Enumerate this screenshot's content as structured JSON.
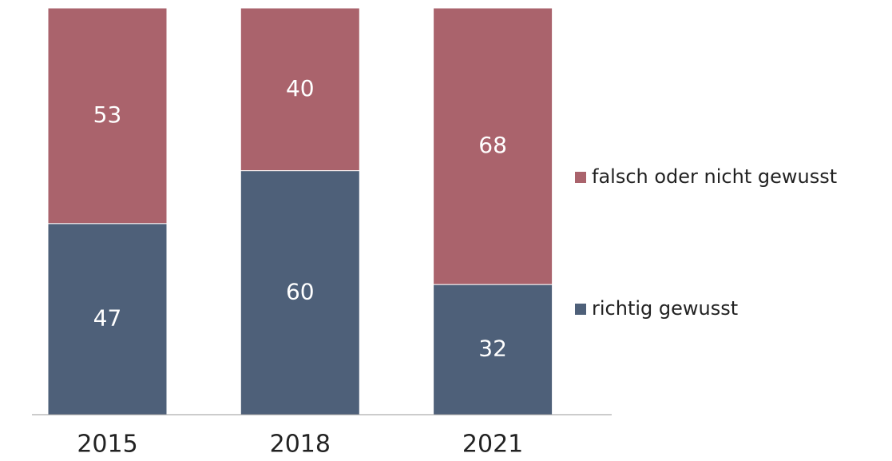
{
  "chart_data": {
    "type": "stacked_bar",
    "categories": [
      "2015",
      "2018",
      "2021"
    ],
    "series": [
      {
        "name": "richtig gewusst",
        "color": "#4e6079",
        "values": [
          47,
          60,
          32
        ]
      },
      {
        "name": "falsch oder nicht gewusst",
        "color": "#aa636c",
        "values": [
          53,
          40,
          68
        ]
      }
    ],
    "legend": "right"
  }
}
